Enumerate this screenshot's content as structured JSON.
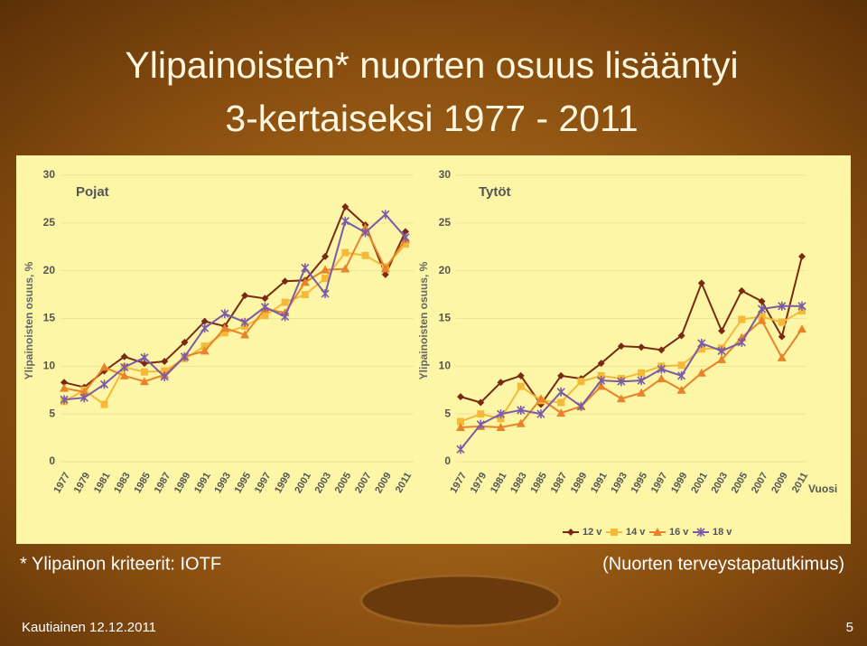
{
  "slide": {
    "title_line1": "Ylipainoisten* nuorten osuus lisääntyi",
    "title_line2": "3-kertaiseksi 1977 - 2011",
    "footnote": "* Ylipainon kriteerit: IOTF",
    "source": "(Nuorten terveystapatutkimus)",
    "author": "Kautiainen 12.12.2011",
    "page": "5"
  },
  "chart_data": [
    {
      "type": "line",
      "title": "Pojat",
      "ylabel": "Ylipainoisten osuus, %",
      "categories": [
        "1977",
        "1979",
        "1981",
        "1983",
        "1985",
        "1987",
        "1989",
        "1991",
        "1993",
        "1995",
        "1997",
        "1999",
        "2001",
        "2003",
        "2005",
        "2007",
        "2009",
        "2011"
      ],
      "ylim": [
        0,
        30
      ],
      "yticks": [
        0,
        5,
        10,
        15,
        20,
        25,
        30
      ],
      "grid": true,
      "series": [
        {
          "color": "#7a2a12",
          "marker": "diamond",
          "values": [
            8.3,
            7.8,
            9.5,
            11.0,
            10.3,
            10.5,
            12.5,
            14.7,
            14.2,
            17.4,
            17.1,
            18.9,
            19.0,
            21.5,
            26.7,
            24.8,
            19.6,
            24.1
          ]
        },
        {
          "color": "#f5b93a",
          "marker": "square",
          "values": [
            6.3,
            7.5,
            6.0,
            9.9,
            9.4,
            9.5,
            10.8,
            12.1,
            13.5,
            14.2,
            15.3,
            16.7,
            17.5,
            19.2,
            21.9,
            21.6,
            20.4,
            22.8
          ]
        },
        {
          "color": "#e8832a",
          "marker": "triangle",
          "values": [
            7.7,
            7.3,
            9.9,
            9.0,
            8.4,
            9.1,
            11.0,
            11.6,
            14.0,
            13.3,
            16.0,
            15.6,
            18.8,
            20.1,
            20.2,
            24.5,
            20.2,
            23.3
          ]
        },
        {
          "color": "#7b5aa6",
          "marker": "x",
          "values": [
            6.5,
            6.7,
            8.1,
            9.9,
            10.9,
            8.9,
            11.0,
            14.0,
            15.5,
            14.6,
            16.2,
            15.2,
            20.3,
            17.6,
            25.2,
            24.0,
            25.9,
            23.5
          ]
        }
      ]
    },
    {
      "type": "line",
      "title": "Tytöt",
      "ylabel": "Ylipainoisten osuus, %",
      "xlabel": "Vuosi",
      "categories": [
        "1977",
        "1979",
        "1981",
        "1983",
        "1985",
        "1987",
        "1989",
        "1991",
        "1993",
        "1995",
        "1997",
        "1999",
        "2001",
        "2003",
        "2005",
        "2007",
        "2009",
        "2011"
      ],
      "ylim": [
        0,
        30
      ],
      "yticks": [
        0,
        5,
        10,
        15,
        20,
        25,
        30
      ],
      "grid": true,
      "series": [
        {
          "name": "12 v",
          "color": "#7a2a12",
          "marker": "diamond",
          "values": [
            6.8,
            6.2,
            8.3,
            9.0,
            6.0,
            9.0,
            8.7,
            10.3,
            12.1,
            12.0,
            11.7,
            13.2,
            18.7,
            13.7,
            17.9,
            16.8,
            13.1,
            21.5
          ]
        },
        {
          "name": "14 v",
          "color": "#f5b93a",
          "marker": "square",
          "values": [
            4.2,
            5.0,
            4.5,
            7.9,
            6.4,
            6.2,
            8.4,
            9.0,
            8.7,
            9.3,
            10.0,
            10.1,
            11.8,
            11.9,
            14.9,
            15.2,
            14.6,
            15.8
          ]
        },
        {
          "name": "16 v",
          "color": "#e8832a",
          "marker": "triangle",
          "values": [
            3.6,
            3.7,
            3.6,
            4.0,
            6.6,
            5.1,
            5.8,
            7.9,
            6.6,
            7.2,
            8.7,
            7.5,
            9.3,
            10.7,
            13.0,
            14.8,
            10.9,
            13.9
          ]
        },
        {
          "name": "18 v",
          "color": "#7b5aa6",
          "marker": "x",
          "values": [
            1.3,
            3.9,
            5.0,
            5.4,
            5.0,
            7.3,
            5.8,
            8.5,
            8.4,
            8.5,
            9.7,
            9.0,
            12.4,
            11.6,
            12.5,
            16.0,
            16.3,
            16.3
          ]
        }
      ]
    }
  ]
}
